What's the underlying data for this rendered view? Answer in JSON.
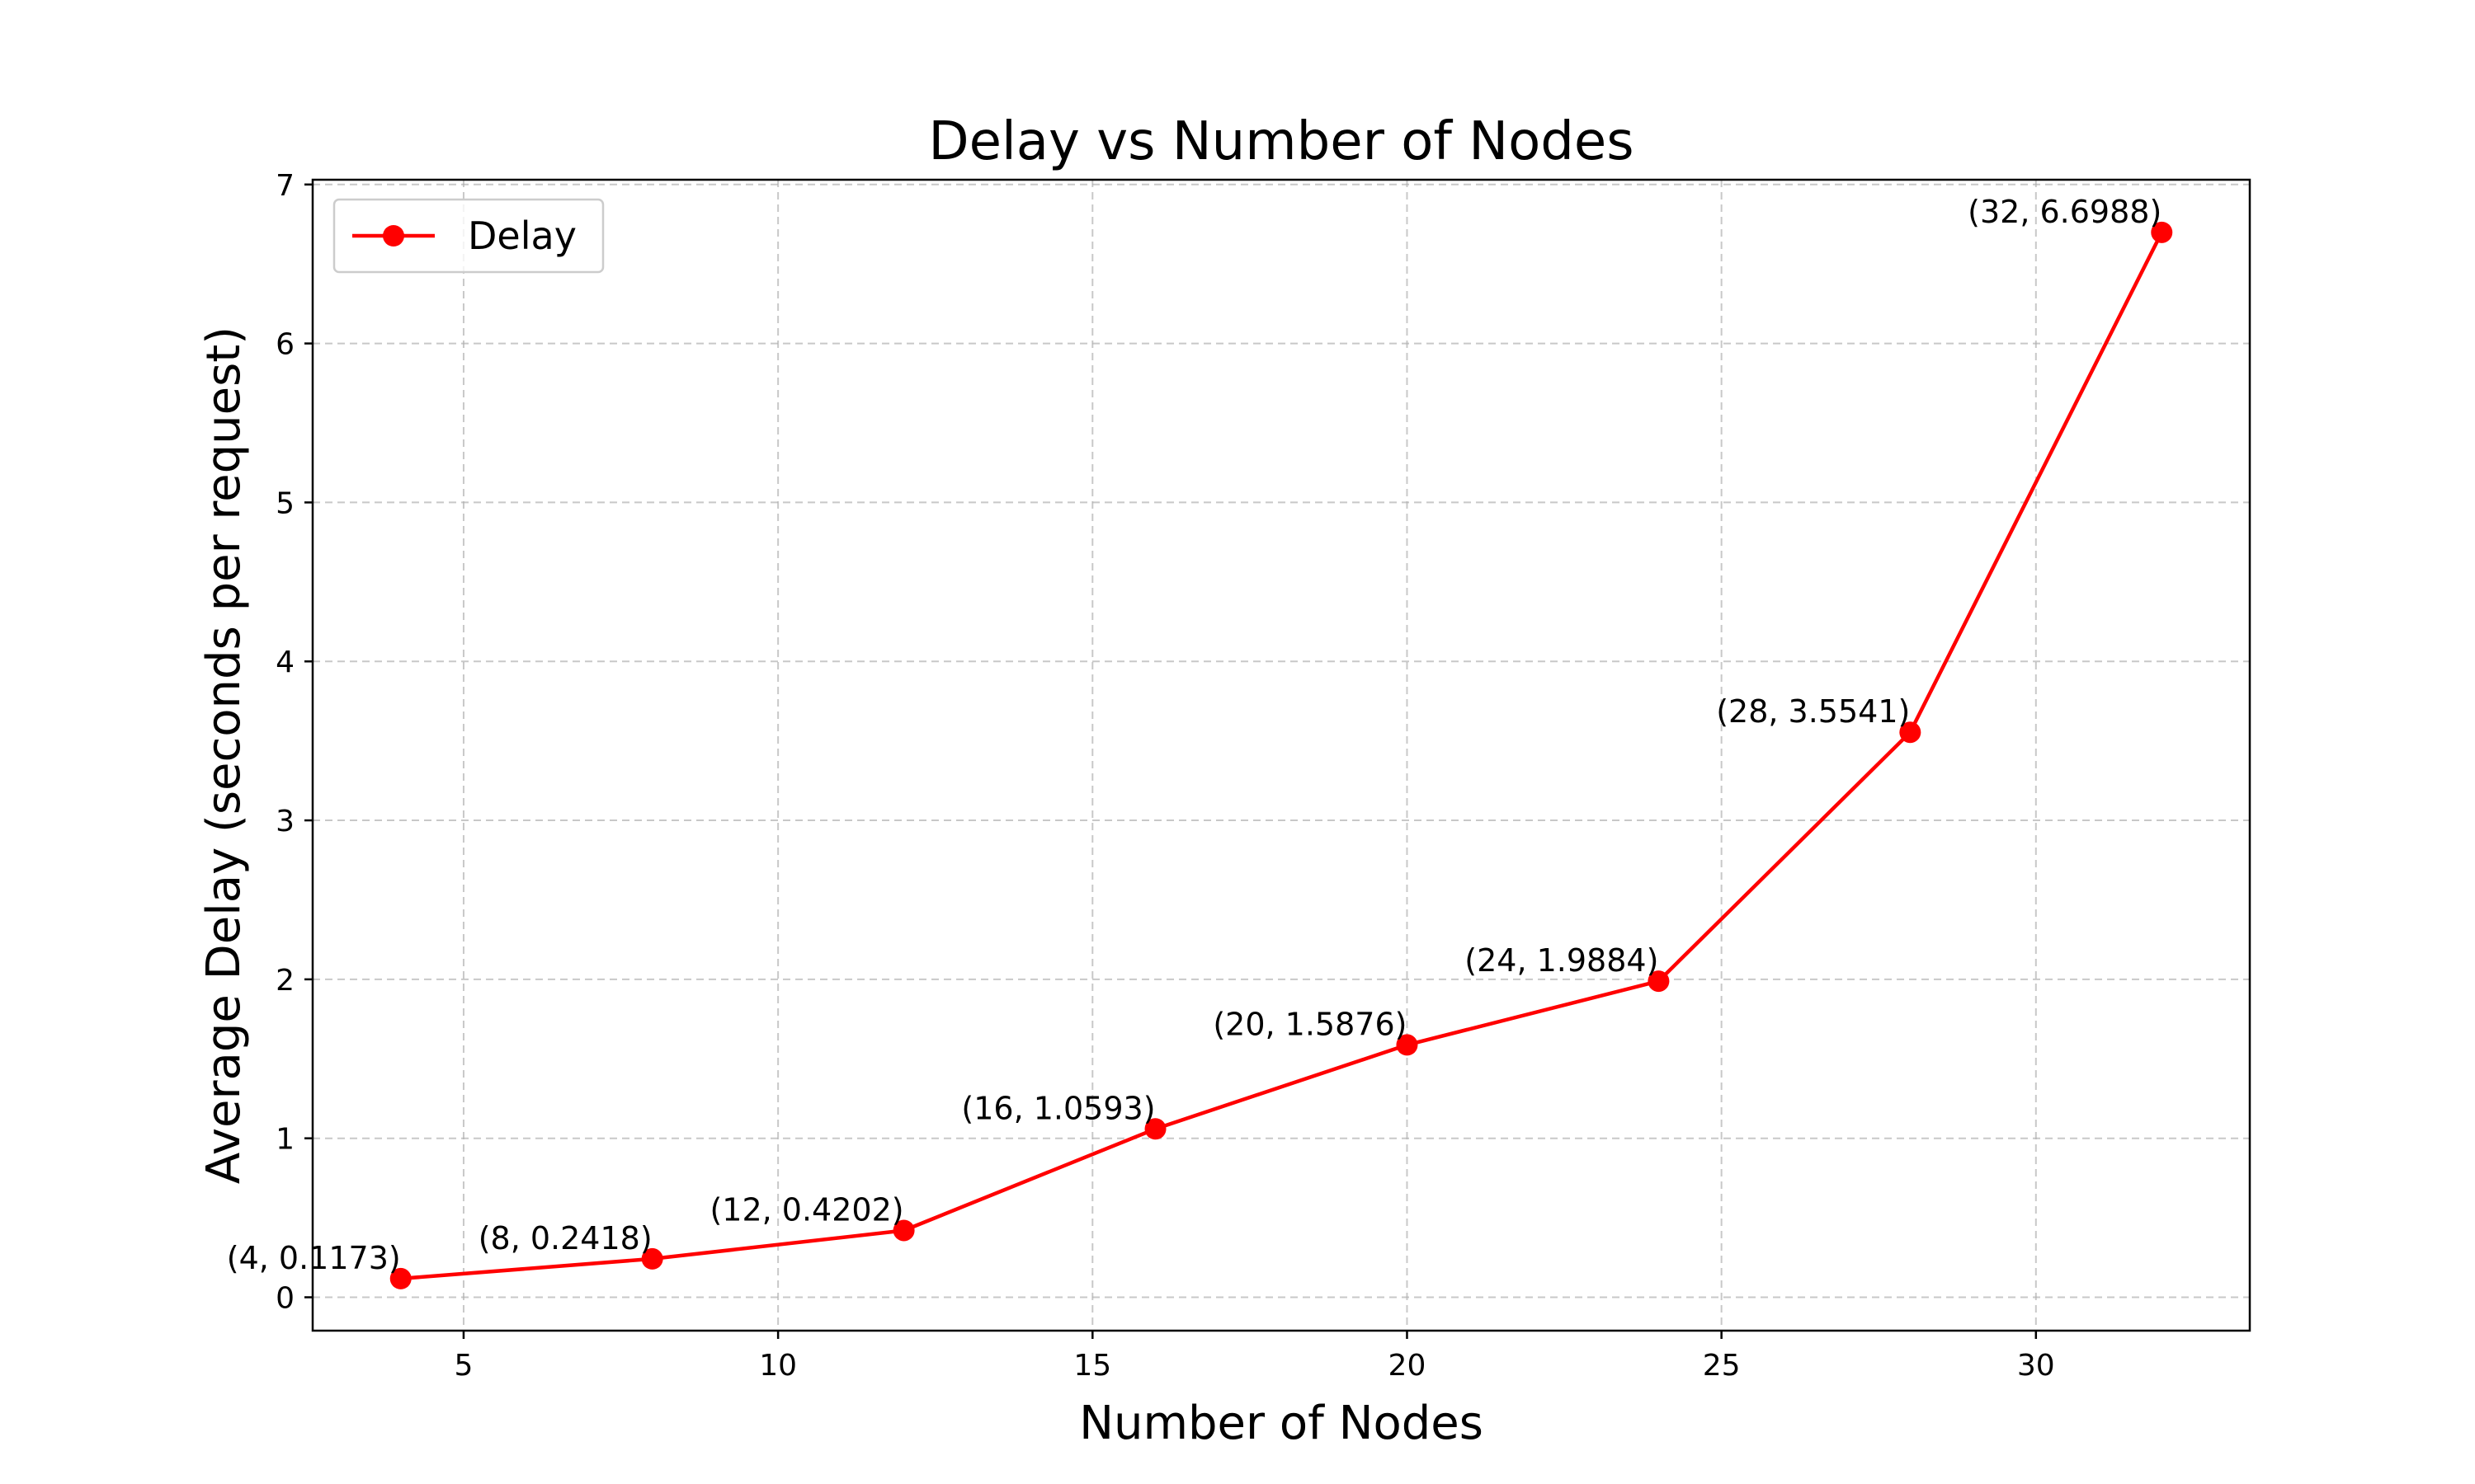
{
  "chart_data": {
    "type": "line",
    "title": "Delay vs Number of Nodes",
    "xlabel": "Number of Nodes",
    "ylabel": "Average Delay (seconds per request)",
    "xlim": [
      2.6,
      33.4
    ],
    "ylim": [
      -0.21,
      7.03
    ],
    "xticks": [
      5,
      10,
      15,
      20,
      25,
      30
    ],
    "yticks": [
      0,
      1,
      2,
      3,
      4,
      5,
      6,
      7
    ],
    "grid": true,
    "legend_position": "top-left",
    "series": [
      {
        "name": "Delay",
        "color": "#ff0000",
        "marker": "circle",
        "x": [
          4,
          8,
          12,
          16,
          20,
          24,
          28,
          32
        ],
        "y": [
          0.1173,
          0.2418,
          0.4202,
          1.0593,
          1.5876,
          1.9884,
          3.5541,
          6.6988
        ],
        "point_labels": [
          "(4, 0.1173)",
          "(8, 0.2418)",
          "(12, 0.4202)",
          "(16, 1.0593)",
          "(20, 1.5876)",
          "(24, 1.9884)",
          "(28, 3.5541)",
          "(32, 6.6988)"
        ]
      }
    ]
  }
}
